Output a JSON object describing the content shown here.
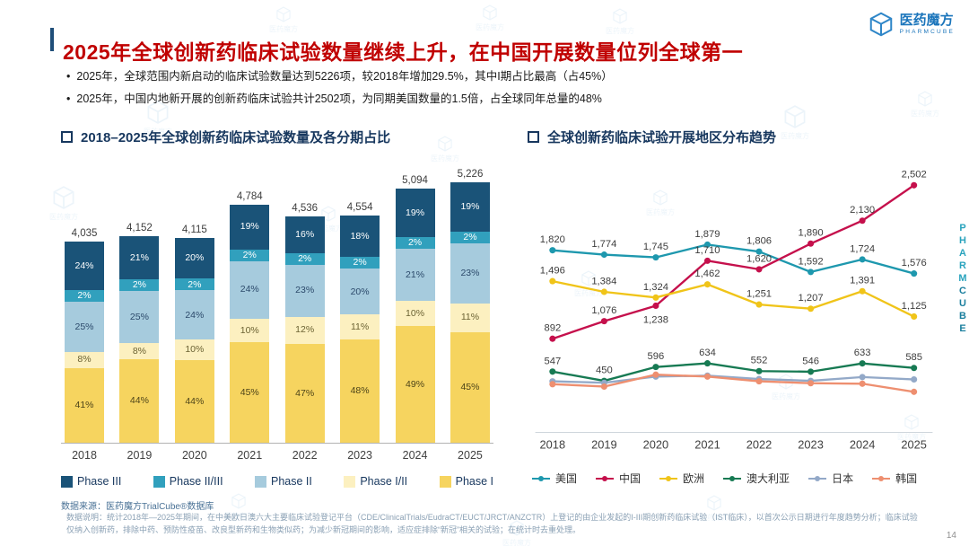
{
  "page": {
    "title": "2025年全球创新药临床试验数量继续上升，在中国开展数量位列全球第一",
    "page_number": "14",
    "side_text_top": "PHARM",
    "side_text_bottom": "CUBE"
  },
  "logo": {
    "name": "医药魔方",
    "sub": "PHARMCUBE"
  },
  "watermark_text": "医药魔方",
  "bullets": [
    "2025年，全球范围内新启动的临床试验数量达到5226项，较2018年增加29.5%，其中I期占比最高（占45%）",
    "2025年，中国内地新开展的创新药临床试验共计2502项，为同期美国数量的1.5倍，占全球同年总量的48%"
  ],
  "chart_data": [
    {
      "type": "bar",
      "stacked": true,
      "title": "2018–2025年全球创新药临床试验数量及各分期占比",
      "categories": [
        "2018",
        "2019",
        "2020",
        "2021",
        "2022",
        "2023",
        "2024",
        "2025"
      ],
      "totals": [
        4035,
        4152,
        4115,
        4784,
        4536,
        4554,
        5094,
        5226
      ],
      "totals_labels": [
        "4,035",
        "4,152",
        "4,115",
        "4,784",
        "4,536",
        "4,554",
        "5,094",
        "5,226"
      ],
      "unit": "%",
      "series": [
        {
          "name": "Phase I",
          "color": "#f6d45f",
          "label_color": "#4d4419",
          "values": [
            41,
            44,
            44,
            45,
            47,
            48,
            49,
            45
          ]
        },
        {
          "name": "Phase I/II",
          "color": "#fcf0c0",
          "label_color": "#6b6233",
          "values": [
            8,
            8,
            10,
            10,
            12,
            11,
            10,
            11
          ]
        },
        {
          "name": "Phase II",
          "color": "#a6cbdd",
          "label_color": "#2c4a6b",
          "values": [
            25,
            25,
            24,
            24,
            23,
            20,
            21,
            23
          ]
        },
        {
          "name": "Phase II/III",
          "color": "#31a0bd",
          "label_color": "#ffffff",
          "values": [
            2,
            2,
            2,
            2,
            2,
            2,
            2,
            2
          ]
        },
        {
          "name": "Phase III",
          "color": "#1a5378",
          "label_color": "#ffffff",
          "values": [
            24,
            21,
            20,
            19,
            16,
            18,
            19,
            19
          ]
        }
      ]
    },
    {
      "type": "line",
      "title": "全球创新药临床试验开展地区分布趋势",
      "categories": [
        "2018",
        "2019",
        "2020",
        "2021",
        "2022",
        "2023",
        "2024",
        "2025"
      ],
      "ylim": [
        0,
        2600
      ],
      "series": [
        {
          "name": "美国",
          "color": "#1e98ae",
          "values": [
            1820,
            1774,
            1745,
            1879,
            1806,
            1592,
            1724,
            1576
          ],
          "labels": [
            "1,820",
            "1,774",
            "1,745",
            "1,879",
            "1,806",
            "1,592",
            "1,724",
            "1,576"
          ]
        },
        {
          "name": "中国",
          "color": "#c5104c",
          "values": [
            892,
            1076,
            1238,
            1710,
            1620,
            1890,
            2130,
            2502
          ],
          "labels": [
            "892",
            "1,076",
            "1,238",
            "1,710",
            "1,620",
            "1,890",
            "2,130",
            "2,502"
          ],
          "label_dy": [
            0,
            0,
            18,
            0,
            0,
            0,
            0,
            0
          ]
        },
        {
          "name": "欧洲",
          "color": "#f0c419",
          "values": [
            1496,
            1384,
            1324,
            1462,
            1251,
            1207,
            1391,
            1125
          ],
          "labels": [
            "1,496",
            "1,384",
            "1,324",
            "1,462",
            "1,251",
            "1,207",
            "1,391",
            "1,125"
          ]
        },
        {
          "name": "澳大利亚",
          "color": "#177a53",
          "values": [
            547,
            450,
            596,
            634,
            552,
            546,
            633,
            585
          ],
          "labels": [
            "547",
            "450",
            "596",
            "634",
            "552",
            "546",
            "633",
            "585"
          ]
        },
        {
          "name": "日本",
          "color": "#93a9c8",
          "values": [
            445,
            430,
            495,
            505,
            470,
            450,
            490,
            465
          ],
          "labels": null
        },
        {
          "name": "韩国",
          "color": "#ee8f70",
          "values": [
            415,
            390,
            515,
            495,
            445,
            425,
            420,
            335
          ],
          "labels": null
        }
      ]
    }
  ],
  "footer": {
    "source": "数据来源：医药魔方TrialCube®数据库",
    "note": "数据说明：统计2018年—2025年期间，在中美欧日澳六大主要临床试验登记平台（CDE/ClinicalTrials/EudraCT/EUCT/JRCT/ANZCTR）上登记的由企业发起的I-III期创新药临床试验（IST临床），以首次公示日期进行年度趋势分析；临床试验仅纳入创新药，排除中药、预防性疫苗、改良型新药和生物类似药；为减少新冠期间的影响，适应症排除“新冠”相关的试验；在统计时去重处理。"
  }
}
